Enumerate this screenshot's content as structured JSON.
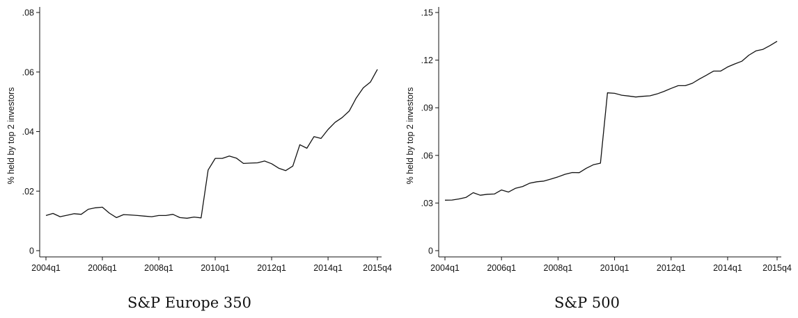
{
  "chart_data": [
    {
      "type": "line",
      "caption": "S&P Europe 350",
      "ylabel": "% held by top 2 investors",
      "ylim": [
        0,
        0.08
      ],
      "yticks": [
        0,
        0.02,
        0.04,
        0.06,
        0.08
      ],
      "ytick_labels": [
        "0",
        ".02",
        ".04",
        ".06",
        ".08"
      ],
      "xlim": [
        0,
        47
      ],
      "xtick_positions": [
        0,
        8,
        16,
        24,
        32,
        40,
        47
      ],
      "xtick_labels": [
        "2004q1",
        "2006q1",
        "2008q1",
        "2010q1",
        "2012q1",
        "2014q1",
        "2015q4"
      ],
      "grid": false,
      "series": [
        {
          "values": [
            0.0118,
            0.0125,
            0.0114,
            0.0119,
            0.0124,
            0.0122,
            0.0139,
            0.0144,
            0.0146,
            0.0126,
            0.0111,
            0.0121,
            0.012,
            0.0118,
            0.0116,
            0.0114,
            0.0118,
            0.0118,
            0.0122,
            0.0111,
            0.0109,
            0.0113,
            0.011,
            0.0271,
            0.031,
            0.031,
            0.0318,
            0.0311,
            0.0293,
            0.0294,
            0.0295,
            0.0301,
            0.0292,
            0.0277,
            0.0269,
            0.0284,
            0.0356,
            0.0344,
            0.0383,
            0.0377,
            0.0407,
            0.0431,
            0.0447,
            0.0469,
            0.0513,
            0.0547,
            0.0566,
            0.0609
          ]
        }
      ]
    },
    {
      "type": "line",
      "caption": "S&P 500",
      "ylabel": "% held by top 2 investors",
      "ylim": [
        0,
        0.15
      ],
      "yticks": [
        0,
        0.03,
        0.06,
        0.09,
        0.12,
        0.15
      ],
      "ytick_labels": [
        "0",
        ".03",
        ".06",
        ".09",
        ".12",
        ".15"
      ],
      "xlim": [
        0,
        47
      ],
      "xtick_positions": [
        0,
        8,
        16,
        24,
        32,
        40,
        47
      ],
      "xtick_labels": [
        "2004q1",
        "2006q1",
        "2008q1",
        "2010q1",
        "2012q1",
        "2014q1",
        "2015q4"
      ],
      "grid": false,
      "series": [
        {
          "values": [
            0.0318,
            0.0319,
            0.0326,
            0.0336,
            0.0365,
            0.0349,
            0.0355,
            0.0357,
            0.0382,
            0.0369,
            0.0393,
            0.0404,
            0.0425,
            0.0434,
            0.0438,
            0.0451,
            0.0465,
            0.0481,
            0.0492,
            0.0491,
            0.0519,
            0.0541,
            0.0551,
            0.0994,
            0.0991,
            0.0979,
            0.0974,
            0.0968,
            0.0972,
            0.0975,
            0.0987,
            0.1003,
            0.1022,
            0.1039,
            0.1039,
            0.1054,
            0.1081,
            0.1105,
            0.1131,
            0.1131,
            0.1157,
            0.1176,
            0.1193,
            0.1231,
            0.1258,
            0.1268,
            0.1292,
            0.1319
          ]
        }
      ]
    }
  ]
}
